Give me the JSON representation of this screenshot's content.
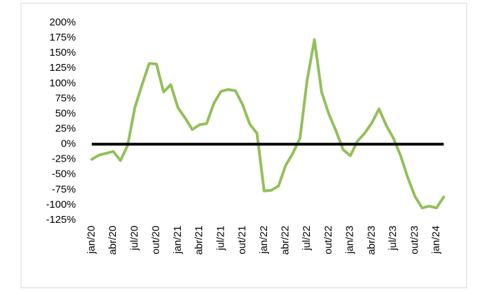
{
  "chart_data": {
    "type": "line",
    "categories": [
      "jan/20",
      null,
      null,
      "abr/20",
      null,
      null,
      "jul/20",
      null,
      null,
      "out/20",
      null,
      null,
      "jan/21",
      null,
      null,
      "abr/21",
      null,
      null,
      "jul/21",
      null,
      null,
      "out/21",
      null,
      null,
      "jan/22",
      null,
      null,
      "abr/22",
      null,
      null,
      "jul/22",
      null,
      null,
      "out/22",
      null,
      null,
      "jan/23",
      null,
      null,
      "abr/23",
      null,
      null,
      "jul/23",
      null,
      null,
      "out/23",
      null,
      null,
      "jan/24",
      null
    ],
    "values": [
      -25,
      -18,
      -15,
      -12,
      -27,
      -2,
      60,
      98,
      133,
      132,
      86,
      98,
      60,
      43,
      24,
      32,
      34,
      67,
      87,
      90,
      88,
      65,
      33,
      18,
      -77,
      -76,
      -69,
      -35,
      -15,
      10,
      106,
      172,
      86,
      50,
      22,
      -9,
      -19,
      5,
      18,
      35,
      58,
      31,
      10,
      -19,
      -55,
      -86,
      -105,
      -102,
      -105,
      -87
    ],
    "color": "#92c05a",
    "reference_line": 0,
    "ylim": [
      -125,
      200
    ],
    "yticks": [
      {
        "value": -125,
        "label": "-125%"
      },
      {
        "value": -100,
        "label": "-100%"
      },
      {
        "value": -75,
        "label": "-75%"
      },
      {
        "value": -50,
        "label": "-50%"
      },
      {
        "value": -25,
        "label": "-25%"
      },
      {
        "value": 0,
        "label": "0%"
      },
      {
        "value": 25,
        "label": "25%"
      },
      {
        "value": 50,
        "label": "50%"
      },
      {
        "value": 75,
        "label": "75%"
      },
      {
        "value": 100,
        "label": "100%"
      },
      {
        "value": 125,
        "label": "125%"
      },
      {
        "value": 150,
        "label": "150%"
      },
      {
        "value": 175,
        "label": "175%"
      },
      {
        "value": 200,
        "label": "200%"
      }
    ]
  }
}
